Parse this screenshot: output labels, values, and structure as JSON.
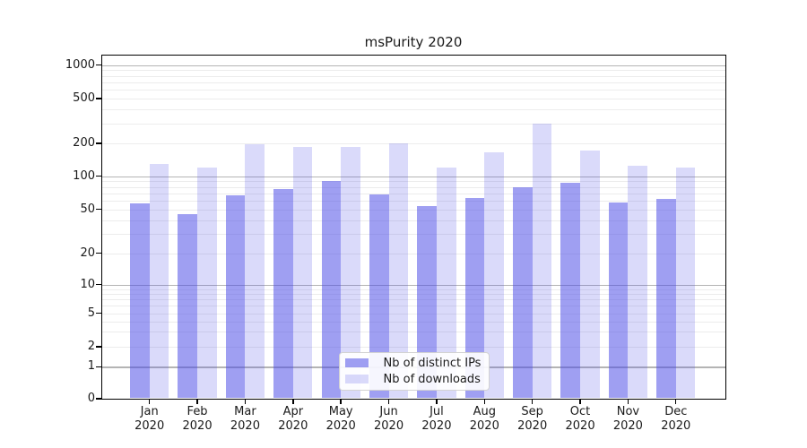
{
  "title": "msPurity 2020",
  "axes": {
    "y_ticks": [
      "0",
      "1",
      "2",
      "5",
      "10",
      "20",
      "50",
      "100",
      "200",
      "500",
      "1000"
    ],
    "x_months": [
      "Jan",
      "Feb",
      "Mar",
      "Apr",
      "May",
      "Jun",
      "Jul",
      "Aug",
      "Sep",
      "Oct",
      "Nov",
      "Dec"
    ],
    "x_year": "2020"
  },
  "legend": {
    "items": [
      {
        "label": "Nb of distinct IPs"
      },
      {
        "label": "Nb of downloads"
      }
    ]
  },
  "chart_data": {
    "type": "bar",
    "title": "msPurity 2020",
    "categories": [
      "Jan 2020",
      "Feb 2020",
      "Mar 2020",
      "Apr 2020",
      "May 2020",
      "Jun 2020",
      "Jul 2020",
      "Aug 2020",
      "Sep 2020",
      "Oct 2020",
      "Nov 2020",
      "Dec 2020"
    ],
    "series": [
      {
        "name": "Nb of distinct IPs",
        "color": "#4646e6",
        "alpha": 0.52,
        "apparent_color": "#9f9ff2",
        "values": [
          57,
          45,
          67,
          77,
          90,
          68,
          54,
          63,
          80,
          88,
          58,
          62
        ]
      },
      {
        "name": "Nb of downloads",
        "color": "#4646e6",
        "alpha": 0.2,
        "apparent_color": "#dadaf9",
        "values": [
          130,
          120,
          195,
          185,
          185,
          200,
          120,
          165,
          300,
          173,
          125,
          121
        ]
      }
    ],
    "xlabel": "",
    "ylabel": "",
    "yscale": "log-like (symlog with 0 baseline)",
    "yticks": [
      0,
      1,
      2,
      5,
      10,
      20,
      50,
      100,
      200,
      500,
      1000
    ],
    "ylim": [
      0,
      1000
    ],
    "grid": true,
    "gridline_major_values": [
      1,
      10,
      100,
      1000
    ],
    "gridline_color_major": "#b4b4b4",
    "gridline_color_minor": "#ececec",
    "legend_position": "lower center"
  }
}
